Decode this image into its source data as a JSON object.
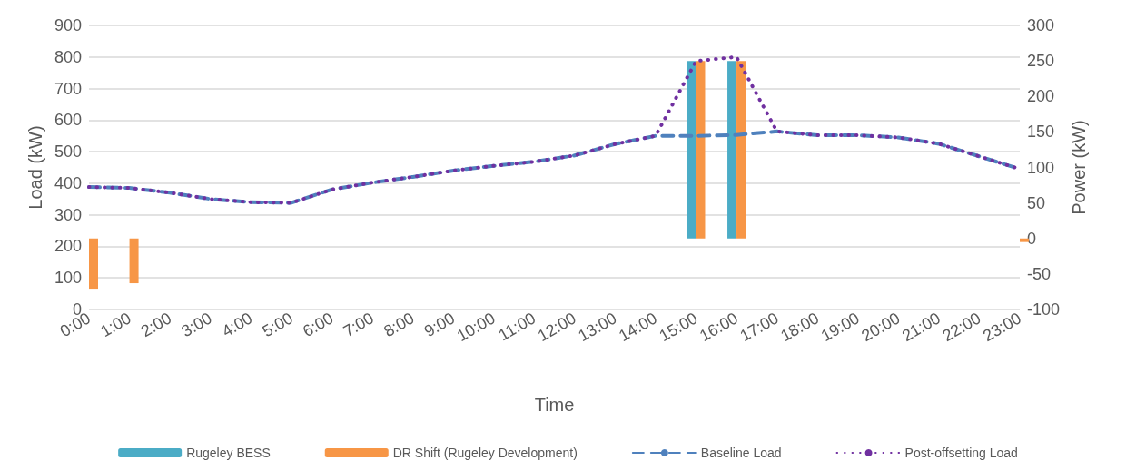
{
  "chart_data": {
    "type": "bar",
    "xlabel": "Time",
    "ylabel": "Load (kW)",
    "y2label": "Power (kW)",
    "categories": [
      "0:00",
      "1:00",
      "2:00",
      "3:00",
      "4:00",
      "5:00",
      "6:00",
      "7:00",
      "8:00",
      "9:00",
      "10:00",
      "11:00",
      "12:00",
      "13:00",
      "14:00",
      "15:00",
      "16:00",
      "17:00",
      "18:00",
      "19:00",
      "20:00",
      "21:00",
      "22:00",
      "23:00"
    ],
    "series": [
      {
        "name": "Rugeley BESS",
        "axis": "y2",
        "color": "#4bacc6",
        "values": [
          null,
          null,
          null,
          null,
          null,
          null,
          null,
          null,
          null,
          null,
          null,
          null,
          null,
          null,
          null,
          250,
          250,
          null,
          null,
          null,
          null,
          null,
          null,
          null
        ]
      },
      {
        "name": "DR Shift (Rugeley Development)",
        "axis": "y2",
        "color": "#f79646",
        "values": [
          -72,
          -63,
          null,
          null,
          null,
          null,
          null,
          null,
          null,
          null,
          null,
          null,
          null,
          null,
          null,
          250,
          250,
          null,
          null,
          null,
          null,
          null,
          null,
          -5
        ]
      },
      {
        "name": "Baseline Load",
        "type": "line",
        "line_style": "dashed",
        "color": "#4f81bd",
        "values": [
          388,
          385,
          370,
          350,
          340,
          338,
          380,
          402,
          420,
          440,
          455,
          468,
          488,
          524,
          550,
          550,
          553,
          564,
          552,
          552,
          545,
          525,
          485,
          445
        ]
      },
      {
        "name": "Post-offsetting Load",
        "type": "line",
        "line_style": "dotted",
        "color": "#7030a0",
        "values": [
          388,
          385,
          370,
          350,
          340,
          338,
          380,
          402,
          420,
          440,
          455,
          468,
          488,
          524,
          550,
          787,
          800,
          564,
          552,
          552,
          545,
          525,
          485,
          445
        ]
      }
    ],
    "ylim": [
      0,
      900
    ],
    "yticks": [
      0,
      100,
      200,
      300,
      400,
      500,
      600,
      700,
      800,
      900
    ],
    "y2lim": [
      -100,
      300
    ],
    "y2ticks": [
      -100,
      -50,
      0,
      50,
      100,
      150,
      200,
      250,
      300
    ],
    "grid": "y",
    "legend": "bottom",
    "marker": "none"
  }
}
